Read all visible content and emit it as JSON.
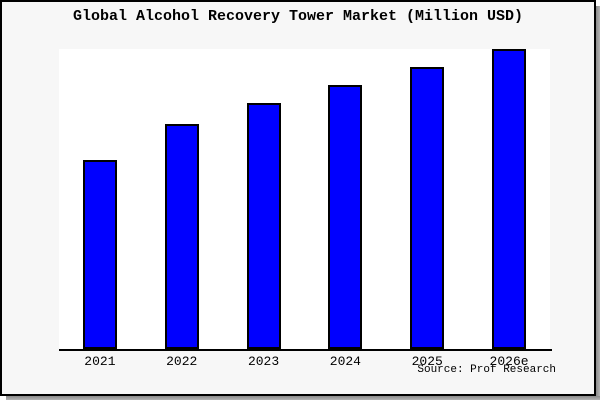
{
  "frame": {
    "bg": "#f7f7f7",
    "border_color": "#000000",
    "shadow_color": "#8a8a8a"
  },
  "chart_data": {
    "type": "bar",
    "title": "Global Alcohol Recovery Tower Market (Million USD)",
    "categories": [
      "2021",
      "2022",
      "2023",
      "2024",
      "2025",
      "2026e"
    ],
    "values": [
      63,
      75,
      82,
      88,
      94,
      100
    ],
    "values_note": "No y-axis scale, ticks or gridlines are shown in the image; values are relative bar heights normalized so 2026e = 100",
    "ylim": [
      0,
      100
    ],
    "xlabel": "",
    "ylabel": "",
    "grid": false,
    "legend": false,
    "y_axis_visible": false,
    "x_axis_line": true,
    "bar_color": "#0000ff",
    "bar_edge_color": "#000000",
    "plot_bg": "#ffffff",
    "source": "Source: Prof Research"
  }
}
